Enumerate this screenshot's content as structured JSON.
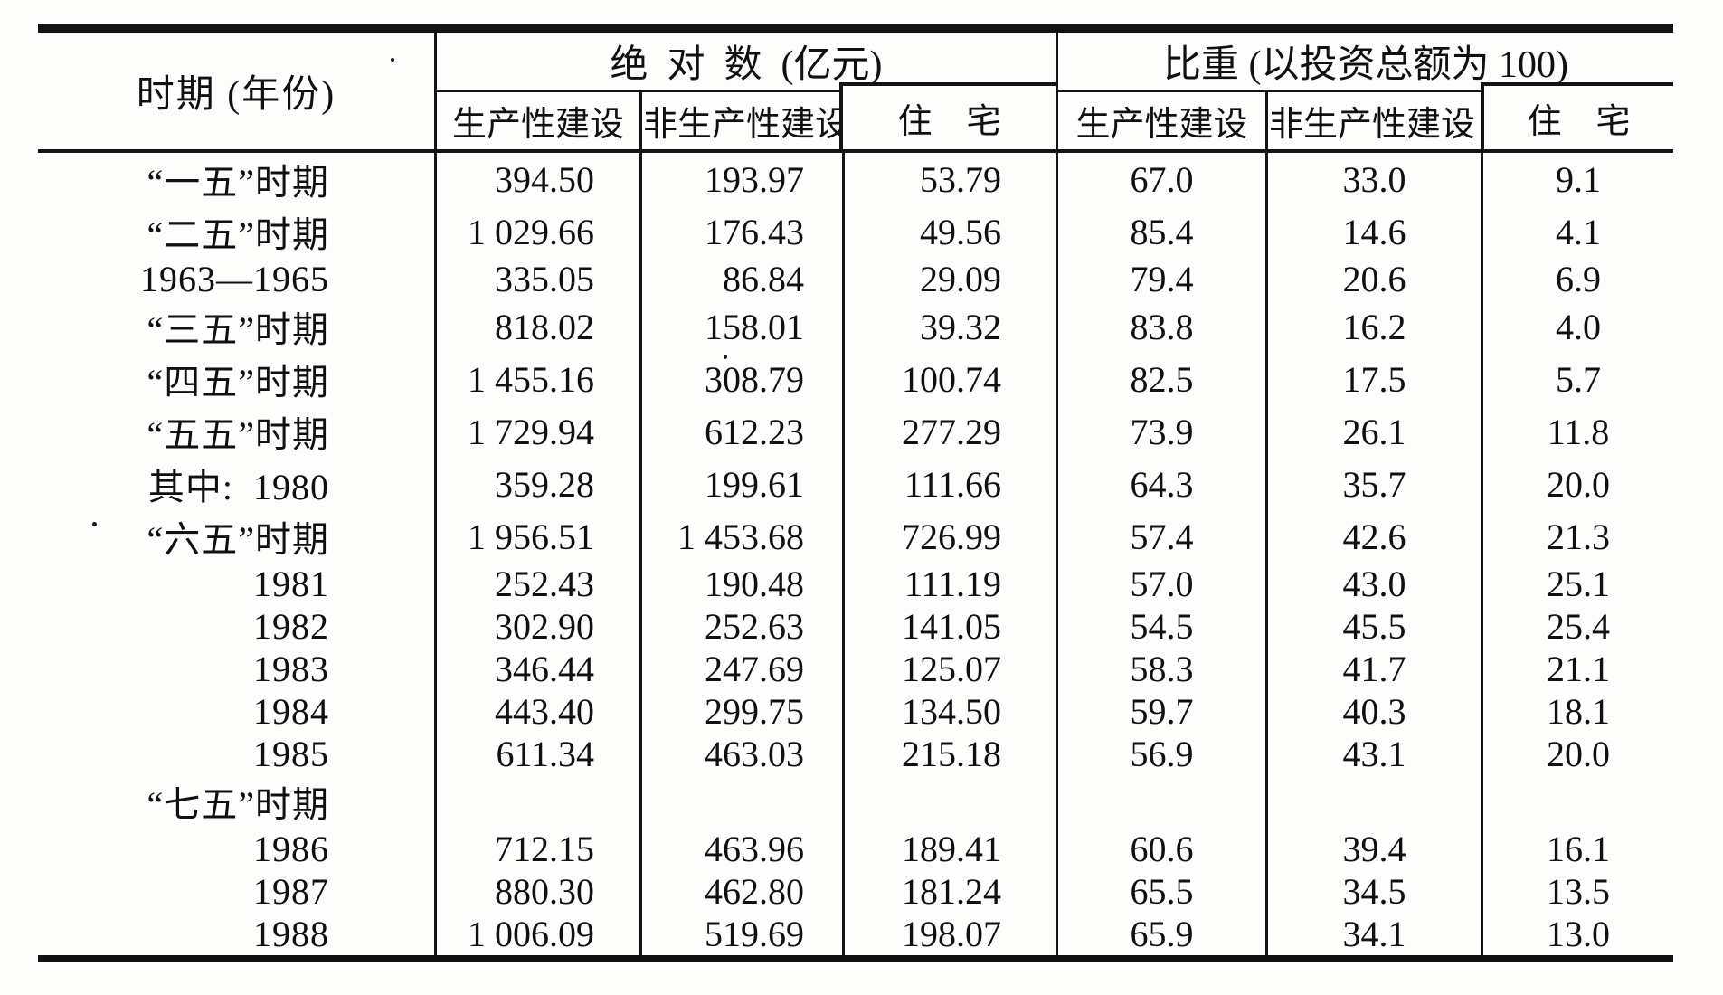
{
  "table": {
    "header": {
      "period": "时期 (年份)",
      "groups": [
        {
          "title": "绝  对  数  (亿元)",
          "productive": "生产性建设",
          "nonproductive": "非生产性建设",
          "housing": "住    宅"
        },
        {
          "title": "比重 (以投资总额为 100)",
          "productive": "生产性建设",
          "nonproductive": "非生产性建设",
          "housing": "住    宅"
        }
      ]
    },
    "rows": [
      {
        "period": "“一五”时期",
        "values": [
          "394.50",
          "193.97",
          "53.79",
          "67.0",
          "33.0",
          "9.1"
        ]
      },
      {
        "period": "“二五”时期",
        "values": [
          "1 029.66",
          "176.43",
          "49.56",
          "85.4",
          "14.6",
          "4.1"
        ]
      },
      {
        "period": "1963—1965",
        "values": [
          "335.05",
          "86.84",
          "29.09",
          "79.4",
          "20.6",
          "6.9"
        ]
      },
      {
        "period": "“三五”时期",
        "values": [
          "818.02",
          "158.01",
          "39.32",
          "83.8",
          "16.2",
          "4.0"
        ]
      },
      {
        "period": "“四五”时期",
        "values": [
          "1 455.16",
          "308.79",
          "100.74",
          "82.5",
          "17.5",
          "5.7"
        ]
      },
      {
        "period": "“五五”时期",
        "values": [
          "1 729.94",
          "612.23",
          "277.29",
          "73.9",
          "26.1",
          "11.8"
        ]
      },
      {
        "period": "其中:  1980",
        "values": [
          "359.28",
          "199.61",
          "111.66",
          "64.3",
          "35.7",
          "20.0"
        ]
      },
      {
        "period": "“六五”时期",
        "values": [
          "1 956.51",
          "1 453.68",
          "726.99",
          "57.4",
          "42.6",
          "21.3"
        ]
      },
      {
        "period": "1981",
        "values": [
          "252.43",
          "190.48",
          "111.19",
          "57.0",
          "43.0",
          "25.1"
        ]
      },
      {
        "period": "1982",
        "values": [
          "302.90",
          "252.63",
          "141.05",
          "54.5",
          "45.5",
          "25.4"
        ]
      },
      {
        "period": "1983",
        "values": [
          "346.44",
          "247.69",
          "125.07",
          "58.3",
          "41.7",
          "21.1"
        ]
      },
      {
        "period": "1984",
        "values": [
          "443.40",
          "299.75",
          "134.50",
          "59.7",
          "40.3",
          "18.1"
        ]
      },
      {
        "period": "1985",
        "values": [
          "611.34",
          "463.03",
          "215.18",
          "56.9",
          "43.1",
          "20.0"
        ]
      },
      {
        "period": "“七五”时期",
        "values": [
          "",
          "",
          "",
          "",
          "",
          ""
        ]
      },
      {
        "period": "1986",
        "values": [
          "712.15",
          "463.96",
          "189.41",
          "60.6",
          "39.4",
          "16.1"
        ]
      },
      {
        "period": "1987",
        "values": [
          "880.30",
          "462.80",
          "181.24",
          "65.5",
          "34.5",
          "13.5"
        ]
      },
      {
        "period": "1988",
        "values": [
          "1 006.09",
          "519.69",
          "198.07",
          "65.9",
          "34.1",
          "13.0"
        ]
      }
    ],
    "ink_color": "#121212",
    "paper_color": "#fdfdfb"
  }
}
